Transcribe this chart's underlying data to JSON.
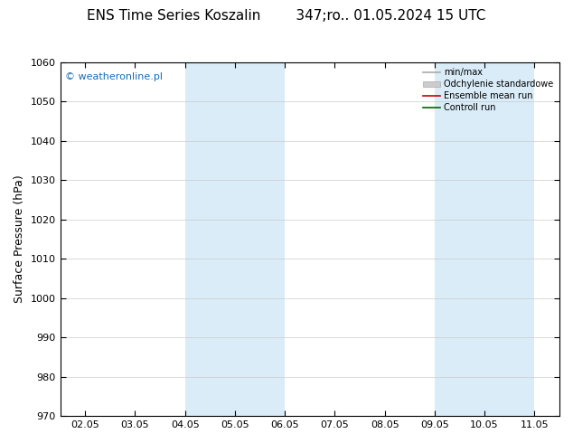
{
  "title": "ENS Time Series Koszalin        347;ro.. 01.05.2024 15 UTC",
  "ylabel": "Surface Pressure (hPa)",
  "ylim": [
    970,
    1060
  ],
  "yticks": [
    970,
    980,
    990,
    1000,
    1010,
    1020,
    1030,
    1040,
    1050,
    1060
  ],
  "x_labels": [
    "02.05",
    "03.05",
    "04.05",
    "05.05",
    "06.05",
    "07.05",
    "08.05",
    "09.05",
    "10.05",
    "11.05"
  ],
  "x_values": [
    0,
    1,
    2,
    3,
    4,
    5,
    6,
    7,
    8,
    9
  ],
  "xlim": [
    -0.5,
    9.5
  ],
  "shaded_regions": [
    {
      "x_start": 2.0,
      "x_end": 4.0,
      "color": "#d9ecf8"
    },
    {
      "x_start": 7.0,
      "x_end": 9.0,
      "color": "#d9ecf8"
    }
  ],
  "watermark": "© weatheronline.pl",
  "watermark_color": "#1a6bb5",
  "legend_items": [
    {
      "label": "min/max",
      "color": "#aaaaaa",
      "style": "line"
    },
    {
      "label": "Odchylenie standardowe",
      "color": "#cccccc",
      "style": "bar"
    },
    {
      "label": "Ensemble mean run",
      "color": "#cc0000",
      "style": "line"
    },
    {
      "label": "Controll run",
      "color": "#006600",
      "style": "line"
    }
  ],
  "bg_color": "#ffffff",
  "plot_bg_color": "#ffffff",
  "border_color": "#000000",
  "grid_color": "#cccccc",
  "title_fontsize": 11,
  "axis_fontsize": 8,
  "ylabel_fontsize": 9,
  "watermark_fontsize": 8,
  "legend_fontsize": 7
}
